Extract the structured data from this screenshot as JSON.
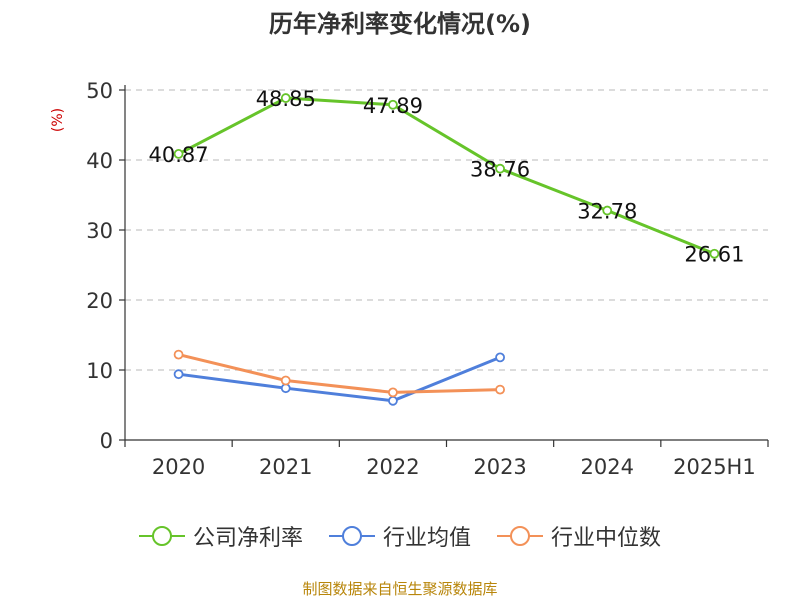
{
  "chart_data": {
    "type": "line",
    "title": "历年净利率变化情况(%)",
    "ylabel": "(%)",
    "categories": [
      "2020",
      "2021",
      "2022",
      "2023",
      "2024",
      "2025H1"
    ],
    "ylim": [
      0,
      50
    ],
    "yticks": [
      "0",
      "10",
      "20",
      "30",
      "40",
      "50"
    ],
    "grid": true,
    "legend_position": "bottom",
    "series": [
      {
        "name": "公司净利率",
        "color": "#66c42a",
        "values": [
          40.87,
          48.85,
          47.89,
          38.76,
          32.78,
          26.61
        ],
        "labels": [
          "40.87",
          "48.85",
          "47.89",
          "38.76",
          "32.78",
          "26.61"
        ]
      },
      {
        "name": "行业均值",
        "color": "#4f7fdb",
        "values": [
          9.4,
          7.4,
          5.6,
          11.8,
          null,
          null
        ]
      },
      {
        "name": "行业中位数",
        "color": "#f39158",
        "values": [
          12.2,
          8.5,
          6.8,
          7.2,
          null,
          null
        ]
      }
    ]
  },
  "source": "制图数据来自恒生聚源数据库"
}
